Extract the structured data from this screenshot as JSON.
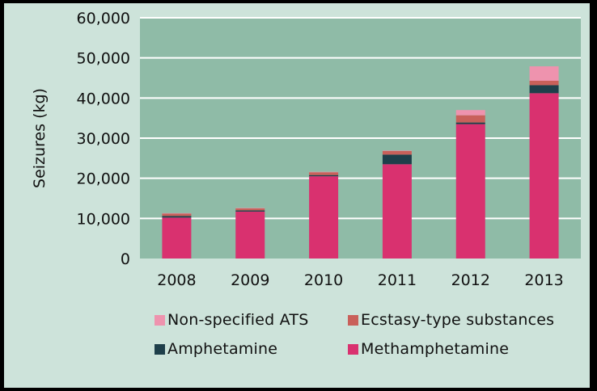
{
  "chart_data": {
    "type": "bar",
    "stacked": true,
    "categories": [
      "2008",
      "2009",
      "2010",
      "2011",
      "2012",
      "2013"
    ],
    "series": [
      {
        "name": "Methamphetamine",
        "color": "#d9316f",
        "values": [
          10200,
          11700,
          20500,
          23500,
          33500,
          41200
        ]
      },
      {
        "name": "Amphetamine",
        "color": "#1e3f4a",
        "values": [
          400,
          300,
          300,
          2400,
          400,
          2000
        ]
      },
      {
        "name": "Ecstasy-type substances",
        "color": "#c9605a",
        "values": [
          600,
          500,
          700,
          900,
          1800,
          1100
        ]
      },
      {
        "name": "Non-specified ATS",
        "color": "#ee93ae",
        "values": [
          100,
          100,
          100,
          100,
          1300,
          3600
        ]
      }
    ],
    "ylabel": "Seizures (kg)",
    "yticks": [
      "0",
      "10,000",
      "20,000",
      "30,000",
      "40,000",
      "50,000",
      "60,000"
    ],
    "ylim": [
      0,
      60000
    ],
    "grid": true,
    "plot_background": "#8fbba7",
    "legend": {
      "placement": "bottom",
      "items": [
        {
          "label": "Non-specified ATS",
          "color": "#ee93ae"
        },
        {
          "label": "Ecstasy-type substances",
          "color": "#c9605a"
        },
        {
          "label": "Amphetamine",
          "color": "#1e3f4a"
        },
        {
          "label": "Methamphetamine",
          "color": "#d9316f"
        }
      ]
    }
  }
}
